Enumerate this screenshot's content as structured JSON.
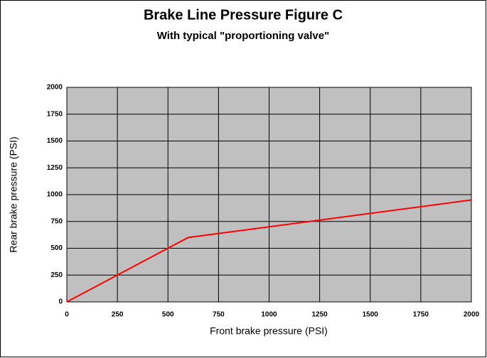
{
  "chart_data": {
    "type": "line",
    "title": "Brake Line Pressure Figure C",
    "subtitle": "With typical \"proportioning valve\"",
    "xlabel": "Front brake pressure (PSI)",
    "ylabel": "Rear brake pressure (PSI)",
    "x": [
      0,
      600,
      2000
    ],
    "series": [
      {
        "color": "#ff0000",
        "values": [
          0,
          600,
          950
        ]
      }
    ],
    "xlim": [
      0,
      2000
    ],
    "xticks": [
      0,
      250,
      500,
      750,
      1000,
      1250,
      1500,
      1750,
      2000
    ],
    "ylim": [
      0,
      2000
    ],
    "yticks": [
      0,
      250,
      500,
      750,
      1000,
      1250,
      1500,
      1750,
      2000
    ],
    "grid": true
  }
}
